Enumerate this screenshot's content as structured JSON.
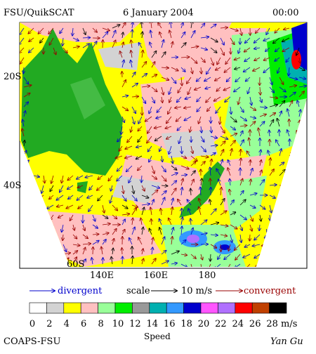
{
  "header": {
    "source": "FSU/QuikSCAT",
    "date": "6 January 2004",
    "time": "00:00"
  },
  "map": {
    "lat_labels": [
      "20S",
      "40S",
      "60S"
    ],
    "lon_labels": [
      "140E",
      "160E",
      "180"
    ]
  },
  "legend": {
    "divergent": "divergent",
    "scale": "scale",
    "scale_value": "10 m/s",
    "convergent": "convergent"
  },
  "colorbar": {
    "colors": [
      "#ffffff",
      "#d3d3d3",
      "#ffff00",
      "#ffc0c0",
      "#99ff99",
      "#00ee00",
      "#999999",
      "#00b0b0",
      "#3399ff",
      "#0000cc",
      "#ff55ff",
      "#b070ff",
      "#ff0000",
      "#c04000",
      "#000000"
    ],
    "labels": [
      0,
      2,
      4,
      6,
      8,
      10,
      12,
      14,
      16,
      18,
      20,
      22,
      24,
      26,
      28
    ],
    "unit": "m/s",
    "title": "Speed"
  },
  "footer": {
    "left": "COAPS-FSU",
    "right": "Yan Gu"
  }
}
